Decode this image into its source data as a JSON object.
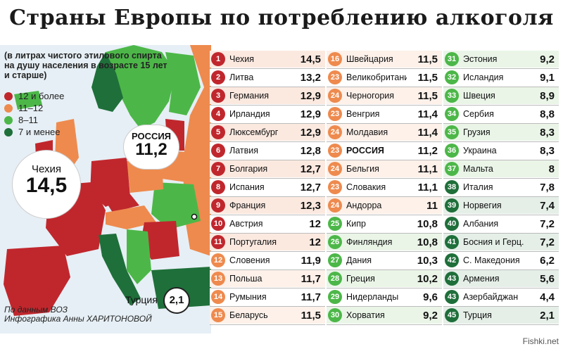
{
  "title": "Страны Европы по потреблению алкоголя",
  "subtitle": "(в литрах чистого этилового спирта на душу населения в возрасте 15 лет и старше)",
  "source_line1": "По данным ВОЗ",
  "source_line2": "Инфографика Анны ХАРИТОНОВОЙ",
  "watermark": "Fishki.net",
  "legend": [
    {
      "label": "12 и более",
      "color": "#c0272d"
    },
    {
      "label": "11–12",
      "color": "#ee8a4e"
    },
    {
      "label": "8–11",
      "color": "#4cb748"
    },
    {
      "label": "7 и менее",
      "color": "#1f6f3a"
    }
  ],
  "callouts": {
    "czech": {
      "name": "Чехия",
      "value": "14,5"
    },
    "russia": {
      "name": "РОССИЯ",
      "value": "11,2"
    },
    "turkey": {
      "name": "Турция",
      "value": "2,1"
    }
  },
  "chart_data": {
    "type": "table",
    "title": "Страны Европы по потреблению алкоголя",
    "columns": [
      "rank",
      "country",
      "value"
    ],
    "rows": [
      {
        "rank": "1",
        "country": "Чехия",
        "value": "14,5",
        "cat": 0
      },
      {
        "rank": "2",
        "country": "Литва",
        "value": "13,2",
        "cat": 0
      },
      {
        "rank": "3",
        "country": "Германия",
        "value": "12,9",
        "cat": 0
      },
      {
        "rank": "4",
        "country": "Ирландия",
        "value": "12,9",
        "cat": 0
      },
      {
        "rank": "5",
        "country": "Люксембург",
        "value": "12,9",
        "cat": 0
      },
      {
        "rank": "6",
        "country": "Латвия",
        "value": "12,8",
        "cat": 0
      },
      {
        "rank": "7",
        "country": "Болгария",
        "value": "12,7",
        "cat": 0
      },
      {
        "rank": "8",
        "country": "Испания",
        "value": "12,7",
        "cat": 0
      },
      {
        "rank": "9",
        "country": "Франция",
        "value": "12,3",
        "cat": 0
      },
      {
        "rank": "10",
        "country": "Австрия",
        "value": "12",
        "cat": 0
      },
      {
        "rank": "11",
        "country": "Португалия",
        "value": "12",
        "cat": 0
      },
      {
        "rank": "12",
        "country": "Словения",
        "value": "11,9",
        "cat": 1
      },
      {
        "rank": "13",
        "country": "Польша",
        "value": "11,7",
        "cat": 1
      },
      {
        "rank": "14",
        "country": "Румыния",
        "value": "11,7",
        "cat": 1
      },
      {
        "rank": "15",
        "country": "Беларусь",
        "value": "11,5",
        "cat": 1
      },
      {
        "rank": "16",
        "country": "Швейцария",
        "value": "11,5",
        "cat": 1
      },
      {
        "rank": "23",
        "country": "Великобритания",
        "value": "11,5",
        "cat": 1
      },
      {
        "rank": "24",
        "country": "Черногория",
        "value": "11,5",
        "cat": 1
      },
      {
        "rank": "23",
        "country": "Венгрия",
        "value": "11,4",
        "cat": 1
      },
      {
        "rank": "24",
        "country": "Молдавия",
        "value": "11,4",
        "cat": 1
      },
      {
        "rank": "23",
        "country": "РОССИЯ",
        "value": "11,2",
        "cat": 1,
        "bold": true
      },
      {
        "rank": "24",
        "country": "Бельгия",
        "value": "11,1",
        "cat": 1
      },
      {
        "rank": "23",
        "country": "Словакия",
        "value": "11,1",
        "cat": 1
      },
      {
        "rank": "24",
        "country": "Андорра",
        "value": "11",
        "cat": 1
      },
      {
        "rank": "25",
        "country": "Кипр",
        "value": "10,8",
        "cat": 2
      },
      {
        "rank": "26",
        "country": "Финляндия",
        "value": "10,8",
        "cat": 2
      },
      {
        "rank": "27",
        "country": "Дания",
        "value": "10,3",
        "cat": 2
      },
      {
        "rank": "28",
        "country": "Греция",
        "value": "10,2",
        "cat": 2
      },
      {
        "rank": "29",
        "country": "Нидерланды",
        "value": "9,6",
        "cat": 2
      },
      {
        "rank": "30",
        "country": "Хорватия",
        "value": "9,2",
        "cat": 2
      },
      {
        "rank": "31",
        "country": "Эстония",
        "value": "9,2",
        "cat": 2
      },
      {
        "rank": "32",
        "country": "Исландия",
        "value": "9,1",
        "cat": 2
      },
      {
        "rank": "33",
        "country": "Швеция",
        "value": "8,9",
        "cat": 2
      },
      {
        "rank": "34",
        "country": "Сербия",
        "value": "8,8",
        "cat": 2
      },
      {
        "rank": "35",
        "country": "Грузия",
        "value": "8,3",
        "cat": 2
      },
      {
        "rank": "36",
        "country": "Украина",
        "value": "8,3",
        "cat": 2
      },
      {
        "rank": "37",
        "country": "Мальта",
        "value": "8",
        "cat": 2
      },
      {
        "rank": "38",
        "country": "Италия",
        "value": "7,8",
        "cat": 3
      },
      {
        "rank": "39",
        "country": "Норвегия",
        "value": "7,4",
        "cat": 3
      },
      {
        "rank": "40",
        "country": "Албания",
        "value": "7,2",
        "cat": 3
      },
      {
        "rank": "41",
        "country": "Босния и Герц.",
        "value": "7,2",
        "cat": 3
      },
      {
        "rank": "42",
        "country": "С. Македония",
        "value": "6,2",
        "cat": 3
      },
      {
        "rank": "43",
        "country": "Армения",
        "value": "5,6",
        "cat": 3
      },
      {
        "rank": "43",
        "country": "Азербайджан",
        "value": "4,4",
        "cat": 3
      },
      {
        "rank": "45",
        "country": "Турция",
        "value": "2,1",
        "cat": 3
      }
    ]
  }
}
